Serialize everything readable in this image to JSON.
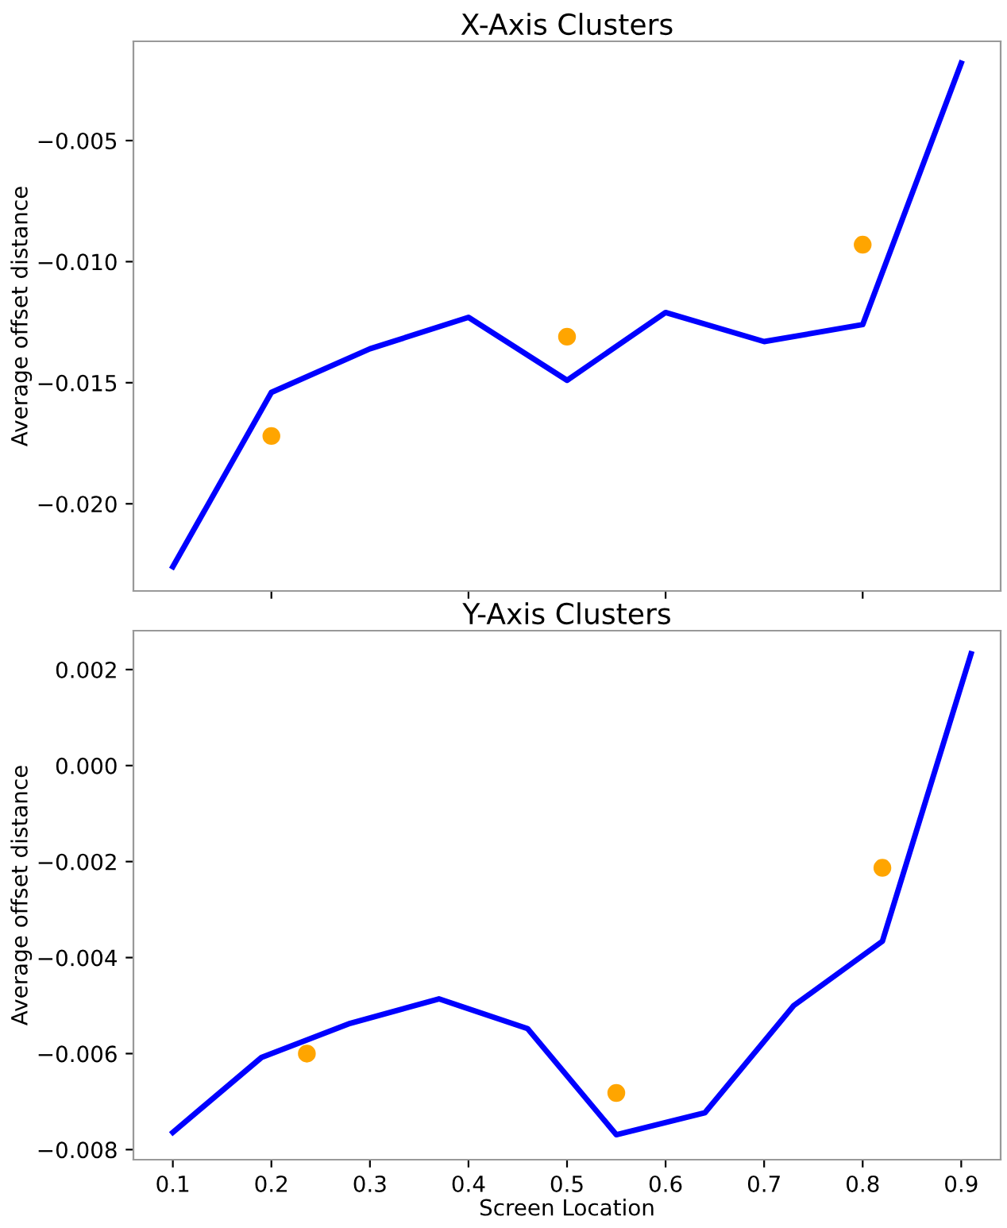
{
  "chart_data": [
    {
      "type": "line",
      "title": "X-Axis Clusters",
      "ylabel": "Average offset distance",
      "xlim": [
        0.06,
        0.94
      ],
      "xticks": [
        {
          "value": 0.2,
          "label": null
        },
        {
          "value": 0.4,
          "label": null
        },
        {
          "value": 0.6,
          "label": null
        },
        {
          "value": 0.8,
          "label": null
        }
      ],
      "ylim": [
        -0.0236,
        -0.0009
      ],
      "yticks": [
        {
          "value": -0.02,
          "label": "−0.020"
        },
        -0.015,
        {
          "value": -0.01,
          "label": "−0.010"
        },
        -0.005
      ],
      "tick_labels": "y",
      "grid": false,
      "legend": false,
      "series": [
        {
          "color": "#0000ff",
          "x": [
            0.1,
            0.2,
            0.3,
            0.4,
            0.5,
            0.6,
            0.7,
            0.8,
            0.9
          ],
          "values": [
            -0.0226,
            -0.0154,
            -0.0136,
            -0.0123,
            -0.0149,
            -0.0121,
            -0.0133,
            -0.0126,
            -0.0018
          ]
        },
        {
          "type": "scatter",
          "color": "#ffa500",
          "x": [
            0.2,
            0.5,
            0.8
          ],
          "values": [
            -0.0172,
            -0.0131,
            -0.0093
          ]
        }
      ]
    },
    {
      "type": "line",
      "title": "Y-Axis Clusters",
      "xlabel": "Screen Location",
      "ylabel": "Average offset distance",
      "xlim": [
        0.06,
        0.94
      ],
      "xticks": [
        0.1,
        0.2,
        0.3,
        0.4,
        0.5,
        0.6,
        0.7,
        0.8,
        0.9
      ],
      "ylim": [
        -0.00821,
        0.00281
      ],
      "yticks": [
        -0.008,
        -0.006,
        -0.004,
        -0.002,
        {
          "value": 0,
          "label": "0.000"
        },
        0.002
      ],
      "grid": false,
      "legend": false,
      "series": [
        {
          "color": "#0000ff",
          "x": [
            0.1,
            0.19,
            0.28,
            0.37,
            0.46,
            0.55,
            0.64,
            0.73,
            0.82,
            0.91
          ],
          "values": [
            -0.00764,
            -0.00608,
            -0.00537,
            -0.00486,
            -0.00548,
            -0.00769,
            -0.00723,
            -0.005,
            -0.00366,
            0.00233
          ]
        },
        {
          "type": "scatter",
          "color": "#ffa500",
          "x": [
            0.236,
            0.55,
            0.82
          ],
          "values": [
            -0.006,
            -0.00682,
            -0.00213
          ]
        }
      ]
    }
  ]
}
